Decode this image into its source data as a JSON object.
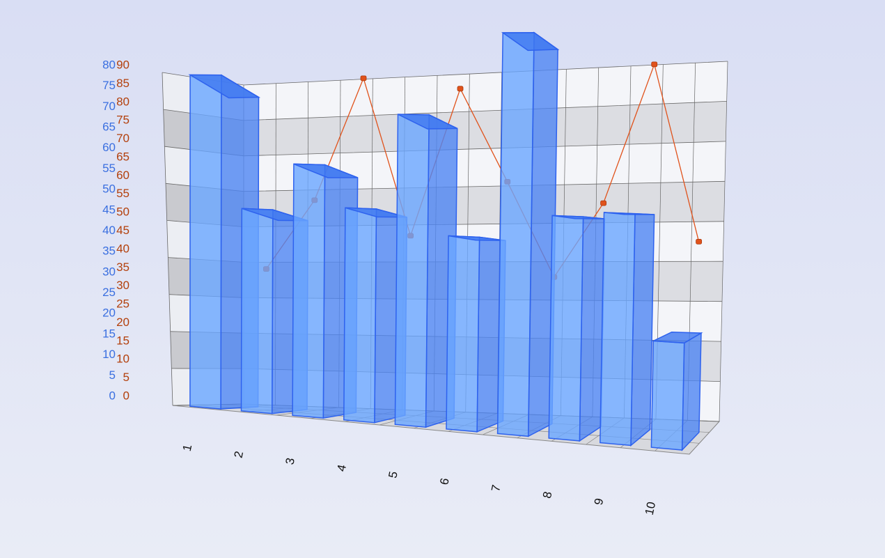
{
  "chart_data": {
    "type": "bar",
    "categories": [
      "1",
      "2",
      "3",
      "4",
      "5",
      "6",
      "7",
      "8",
      "9",
      "10"
    ],
    "series": [
      {
        "color": "#6aa6ff",
        "values": [
          73,
          44,
          54,
          45,
          65,
          40,
          82,
          45,
          46,
          21
        ]
      },
      {
        "type": "line",
        "axis": "y2",
        "color": "#e0521b",
        "values": [
          38,
          57,
          90,
          47,
          86,
          61,
          36,
          55,
          90,
          45
        ]
      }
    ],
    "ylim": [
      0,
      80
    ],
    "yticks": [
      0,
      5,
      10,
      15,
      20,
      25,
      30,
      35,
      40,
      45,
      50,
      55,
      60,
      65,
      70,
      75,
      80
    ],
    "y2lim": [
      0,
      90
    ],
    "y2ticks": [
      0,
      5,
      10,
      15,
      20,
      25,
      30,
      35,
      40,
      45,
      50,
      55,
      60,
      65,
      70,
      75,
      80,
      85,
      90
    ],
    "y_tick_color": "#3a6fe0",
    "y2_tick_color": "#b3400c",
    "grid": true
  }
}
